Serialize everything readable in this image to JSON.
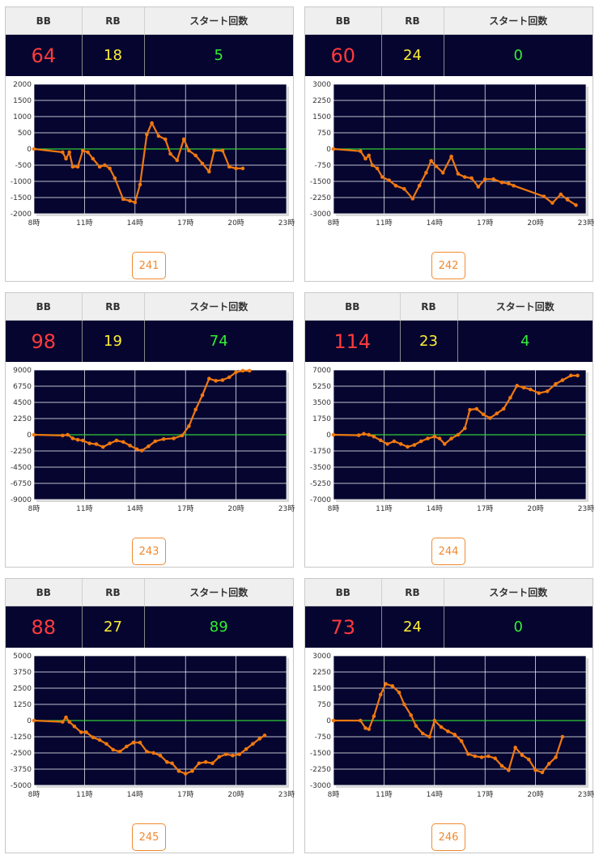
{
  "headers": {
    "bb": "BB",
    "rb": "RB",
    "start": "スタート回数"
  },
  "colors": {
    "bb": "#ff3b3b",
    "rb": "#ffee33",
    "start": "#33ee33",
    "line": "#f07810",
    "zero": "#33cc33",
    "plot_bg": "#050530"
  },
  "machines": [
    {
      "number": "241",
      "bb": "64",
      "rb": "18",
      "start": "5"
    },
    {
      "number": "242",
      "bb": "60",
      "rb": "24",
      "start": "0"
    },
    {
      "number": "243",
      "bb": "98",
      "rb": "19",
      "start": "74"
    },
    {
      "number": "244",
      "bb": "114",
      "rb": "23",
      "start": "4"
    },
    {
      "number": "245",
      "bb": "88",
      "rb": "27",
      "start": "89"
    },
    {
      "number": "246",
      "bb": "73",
      "rb": "24",
      "start": "0"
    }
  ],
  "chart_data": [
    {
      "type": "line",
      "machine": "241",
      "x_tick_labels": [
        "8時",
        "11時",
        "14時",
        "17時",
        "20時",
        "23時"
      ],
      "xlim": [
        8,
        23
      ],
      "ylim": [
        -2000,
        2000
      ],
      "y_ticks": [
        2000,
        1500,
        1000,
        500,
        0,
        -500,
        -1000,
        -1500,
        -2000
      ],
      "grid": true,
      "series": [
        {
          "x": [
            8,
            9.7,
            9.9,
            10.1,
            10.3,
            10.6,
            10.9,
            11.2,
            11.5,
            11.9,
            12.2,
            12.5,
            12.8,
            13.3,
            13.7,
            14.0,
            14.3,
            14.7,
            15.0,
            15.4,
            15.8,
            16.1,
            16.5,
            16.9,
            17.2,
            17.6,
            18.0,
            18.4,
            18.7,
            19.2,
            19.6,
            20.0,
            20.4
          ],
          "y": [
            0,
            -100,
            -300,
            -100,
            -550,
            -550,
            -50,
            -100,
            -300,
            -550,
            -500,
            -600,
            -900,
            -1550,
            -1600,
            -1650,
            -1100,
            450,
            800,
            400,
            300,
            -150,
            -350,
            300,
            -50,
            -200,
            -450,
            -700,
            -50,
            -50,
            -550,
            -600,
            -600
          ]
        }
      ]
    },
    {
      "type": "line",
      "machine": "242",
      "x_tick_labels": [
        "8時",
        "11時",
        "14時",
        "17時",
        "20時",
        "23時"
      ],
      "xlim": [
        8,
        23
      ],
      "ylim": [
        -3000,
        3000
      ],
      "y_ticks": [
        3000,
        2250,
        1500,
        750,
        0,
        -750,
        -1500,
        -2250,
        -3000
      ],
      "grid": true,
      "series": [
        {
          "x": [
            8,
            9.6,
            9.9,
            10.1,
            10.3,
            10.6,
            10.9,
            11.3,
            11.7,
            12.2,
            12.7,
            13.1,
            13.5,
            13.8,
            14.1,
            14.5,
            15.0,
            15.4,
            15.8,
            16.2,
            16.6,
            17.0,
            17.5,
            18.0,
            18.4,
            18.7,
            20.5,
            21.0,
            21.5,
            21.9,
            22.4
          ],
          "y": [
            0,
            -100,
            -450,
            -300,
            -750,
            -900,
            -1300,
            -1450,
            -1700,
            -1850,
            -2300,
            -1700,
            -1100,
            -550,
            -800,
            -1100,
            -350,
            -1150,
            -1300,
            -1350,
            -1750,
            -1400,
            -1400,
            -1550,
            -1600,
            -1700,
            -2200,
            -2500,
            -2100,
            -2350,
            -2600
          ]
        }
      ]
    },
    {
      "type": "line",
      "machine": "243",
      "x_tick_labels": [
        "8時",
        "11時",
        "14時",
        "17時",
        "20時",
        "23時"
      ],
      "xlim": [
        8,
        23
      ],
      "ylim": [
        -9000,
        9000
      ],
      "y_ticks": [
        9000,
        6750,
        4500,
        2250,
        0,
        -2250,
        -4500,
        -6750,
        -9000
      ],
      "grid": true,
      "series": [
        {
          "x": [
            8,
            9.7,
            10.0,
            10.3,
            10.6,
            10.9,
            11.3,
            11.7,
            12.1,
            12.5,
            12.9,
            13.3,
            13.7,
            14.1,
            14.4,
            14.8,
            15.2,
            15.7,
            16.3,
            16.8,
            17.2,
            17.6,
            18.0,
            18.4,
            18.8,
            19.2,
            19.6,
            20.0,
            20.4,
            20.8
          ],
          "y": [
            0,
            -100,
            0,
            -500,
            -700,
            -800,
            -1200,
            -1300,
            -1700,
            -1200,
            -800,
            -1000,
            -1500,
            -2000,
            -2200,
            -1600,
            -900,
            -600,
            -500,
            -100,
            1200,
            3500,
            5500,
            7800,
            7500,
            7600,
            8000,
            8700,
            8900,
            8900
          ]
        }
      ]
    },
    {
      "type": "line",
      "machine": "244",
      "x_tick_labels": [
        "8時",
        "11時",
        "14時",
        "17時",
        "20時",
        "23時"
      ],
      "xlim": [
        8,
        23
      ],
      "ylim": [
        -7000,
        7000
      ],
      "y_ticks": [
        7000,
        5250,
        3500,
        1750,
        0,
        -1750,
        -3500,
        -5250,
        -7000
      ],
      "grid": true,
      "series": [
        {
          "x": [
            8,
            9.5,
            9.8,
            10.1,
            10.4,
            10.8,
            11.2,
            11.6,
            12.0,
            12.4,
            12.8,
            13.2,
            13.6,
            14.0,
            14.3,
            14.6,
            15.0,
            15.4,
            15.8,
            16.1,
            16.5,
            16.9,
            17.3,
            17.7,
            18.1,
            18.5,
            18.9,
            19.3,
            19.7,
            20.2,
            20.7,
            21.2,
            21.6,
            22.1,
            22.5
          ],
          "y": [
            0,
            -50,
            100,
            0,
            -200,
            -600,
            -1000,
            -700,
            -1000,
            -1300,
            -1100,
            -700,
            -400,
            -200,
            -400,
            -1000,
            -400,
            0,
            700,
            2700,
            2800,
            2200,
            1800,
            2300,
            2800,
            4000,
            5300,
            5100,
            4900,
            4500,
            4700,
            5500,
            5900,
            6400,
            6400
          ]
        }
      ]
    },
    {
      "type": "line",
      "machine": "245",
      "x_tick_labels": [
        "8時",
        "11時",
        "14時",
        "17時",
        "20時",
        "23時"
      ],
      "xlim": [
        8,
        23
      ],
      "ylim": [
        -5000,
        5000
      ],
      "y_ticks": [
        5000,
        3750,
        2500,
        1250,
        0,
        -1250,
        -2500,
        -3750,
        -5000
      ],
      "grid": true,
      "series": [
        {
          "x": [
            8,
            9.7,
            9.9,
            10.1,
            10.4,
            10.8,
            11.1,
            11.5,
            11.9,
            12.3,
            12.7,
            13.1,
            13.5,
            13.9,
            14.3,
            14.7,
            15.1,
            15.5,
            15.9,
            16.2,
            16.6,
            17.0,
            17.4,
            17.8,
            18.2,
            18.6,
            19.0,
            19.4,
            19.8,
            20.2,
            20.6,
            21.0,
            21.4,
            21.7
          ],
          "y": [
            0,
            -100,
            250,
            -100,
            -450,
            -900,
            -900,
            -1300,
            -1500,
            -1800,
            -2250,
            -2400,
            -2000,
            -1700,
            -1700,
            -2400,
            -2500,
            -2700,
            -3200,
            -3300,
            -3900,
            -4100,
            -3900,
            -3300,
            -3200,
            -3300,
            -2800,
            -2600,
            -2700,
            -2600,
            -2200,
            -1800,
            -1400,
            -1150
          ]
        }
      ]
    },
    {
      "type": "line",
      "machine": "246",
      "x_tick_labels": [
        "8時",
        "11時",
        "14時",
        "17時",
        "20時",
        "23時"
      ],
      "xlim": [
        8,
        23
      ],
      "ylim": [
        -3000,
        3000
      ],
      "y_ticks": [
        3000,
        2250,
        1500,
        750,
        0,
        -750,
        -1500,
        -2250,
        -3000
      ],
      "grid": true,
      "series": [
        {
          "x": [
            8,
            9.6,
            9.9,
            10.1,
            10.4,
            10.8,
            11.1,
            11.5,
            11.9,
            12.2,
            12.6,
            12.9,
            13.3,
            13.7,
            14.0,
            14.4,
            14.8,
            15.2,
            15.6,
            16.0,
            16.4,
            16.8,
            17.2,
            17.6,
            18.0,
            18.4,
            18.8,
            19.2,
            19.6,
            20.0,
            20.4,
            20.8,
            21.2,
            21.6
          ],
          "y": [
            0,
            0,
            -350,
            -400,
            200,
            1200,
            1700,
            1600,
            1300,
            750,
            250,
            -250,
            -600,
            -750,
            0,
            -300,
            -500,
            -650,
            -950,
            -1550,
            -1650,
            -1700,
            -1650,
            -1750,
            -2100,
            -2300,
            -1250,
            -1600,
            -1800,
            -2300,
            -2400,
            -2000,
            -1700,
            -750
          ]
        }
      ]
    }
  ]
}
